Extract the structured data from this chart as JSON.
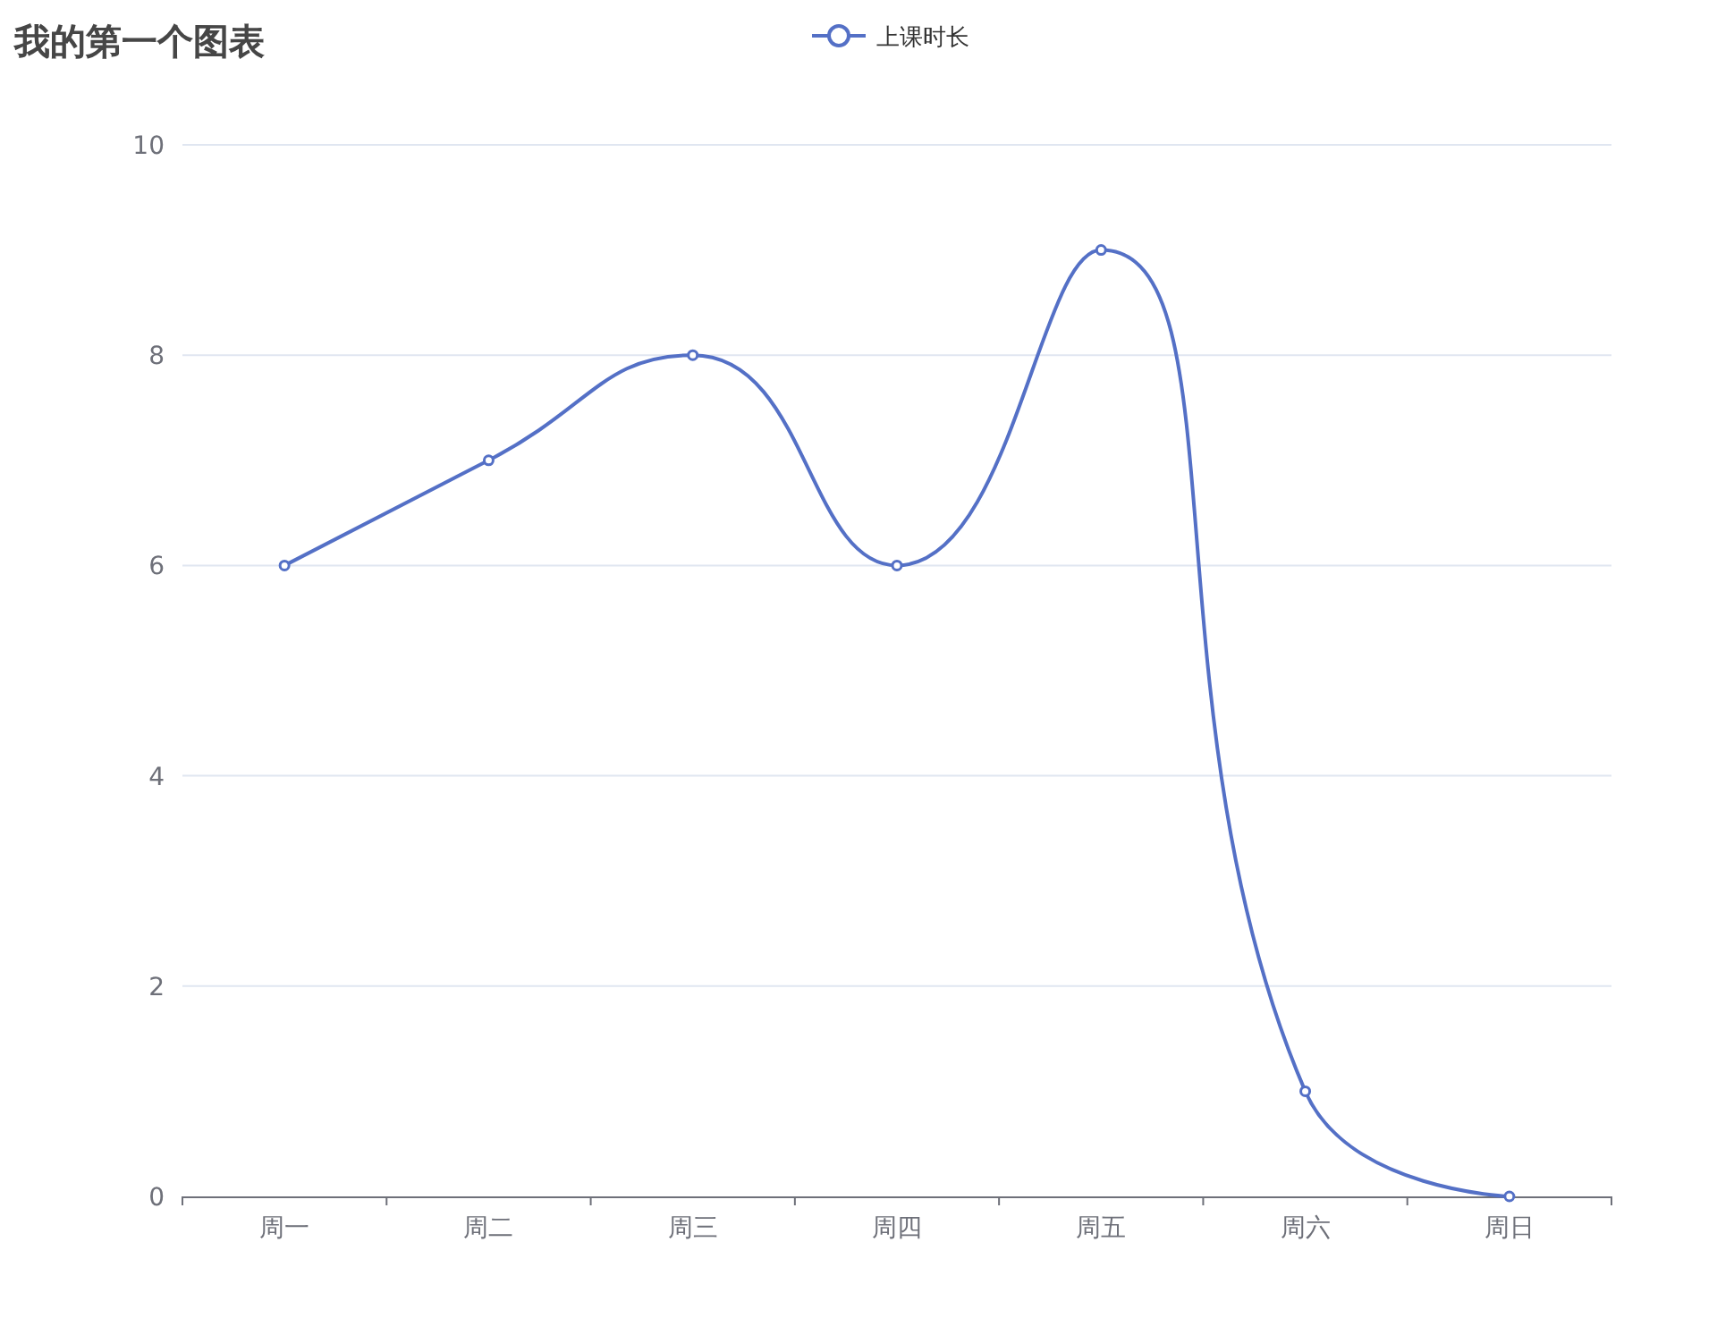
{
  "chart_data": {
    "type": "line",
    "title": "我的第一个图表",
    "categories": [
      "周一",
      "周二",
      "周三",
      "周四",
      "周五",
      "周六",
      "周日"
    ],
    "series": [
      {
        "name": "上课时长",
        "color": "#5470c6",
        "values": [
          6,
          7,
          8,
          6,
          9,
          1,
          0
        ]
      }
    ],
    "ylim": [
      0,
      10
    ],
    "yticks": [
      0,
      2,
      4,
      6,
      8,
      10
    ],
    "grid": "y",
    "legend": "top",
    "marker": "circle"
  }
}
